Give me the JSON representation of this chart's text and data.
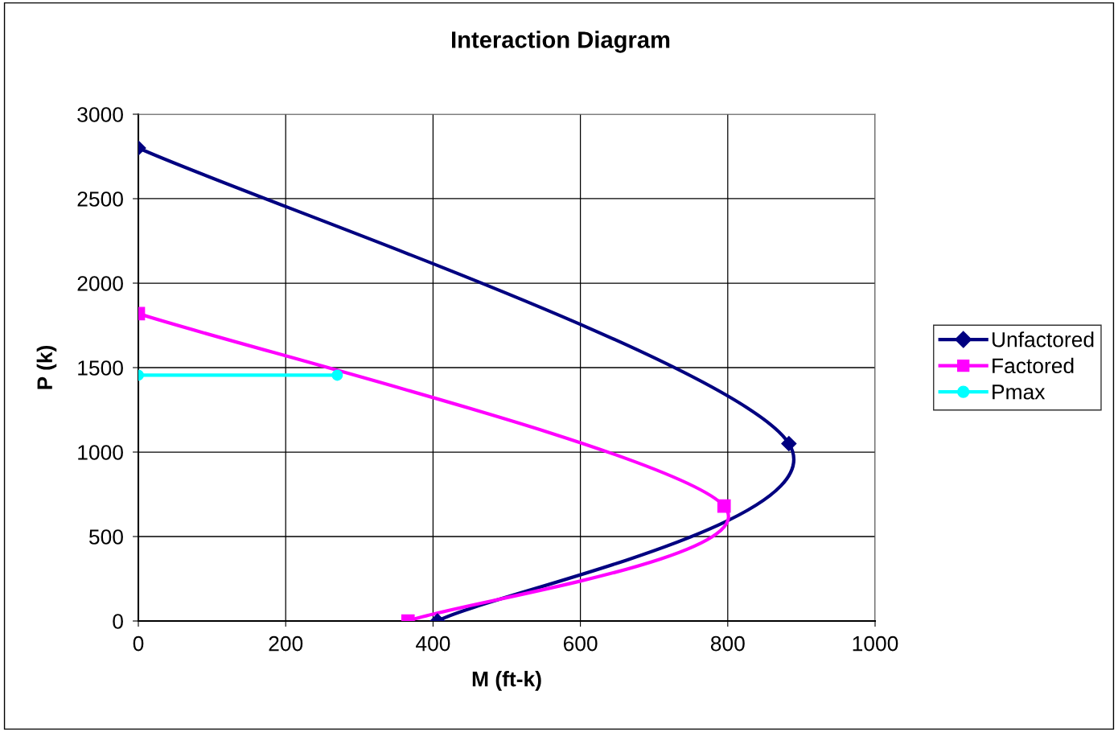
{
  "chart_data": {
    "type": "line",
    "title": "Interaction Diagram",
    "xlabel": "M (ft-k)",
    "ylabel": "P (k)",
    "series": [
      {
        "name": "Unfactored",
        "color": "#000080",
        "marker": "diamond",
        "x": [
          0,
          883,
          406
        ],
        "values": [
          2800,
          1050,
          0
        ]
      },
      {
        "name": "Factored",
        "color": "#ff00ff",
        "marker": "square",
        "x": [
          0,
          795,
          366
        ],
        "values": [
          1820,
          680,
          0
        ]
      },
      {
        "name": "Pmax",
        "color": "#00ffff",
        "marker": "circle",
        "x": [
          0,
          270
        ],
        "values": [
          1455,
          1455
        ]
      }
    ],
    "xlim": [
      0,
      1000
    ],
    "xticks": [
      0,
      200,
      400,
      600,
      800,
      1000
    ],
    "ylim": [
      0,
      3000
    ],
    "yticks": [
      0,
      500,
      1000,
      1500,
      2000,
      2500,
      3000
    ],
    "grid": true,
    "legend": "right",
    "line_style": "solid"
  }
}
